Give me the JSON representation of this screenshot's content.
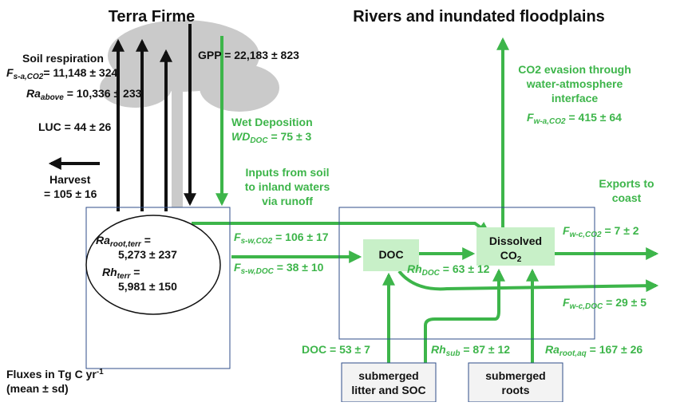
{
  "titles": {
    "terra_firme": "Terra Firme",
    "rivers": "Rivers and inundated floodplains"
  },
  "terra": {
    "soil_respiration": "Soil respiration",
    "f_sa": {
      "sym": "F",
      "sub": "s-a,CO2",
      "val": "= 11,148 ± 324"
    },
    "ra_above": {
      "sym": "Ra",
      "sub": "above",
      "val": " = 10,336 ± 233"
    },
    "luc": "LUC = 44 ± 26",
    "harvest": [
      "Harvest",
      "= 105 ± 16"
    ],
    "gpp": "GPP = 22,183 ± 823",
    "ra_root_terr": {
      "sym": "Ra",
      "sub": "root,terr",
      "val": " =",
      "val2": "5,273 ± 237"
    },
    "rh_terr": {
      "sym": "Rh",
      "sub": "terr",
      "val": " =",
      "val2": "5,981 ± 150"
    }
  },
  "transfer": {
    "wet_deposition": "Wet Deposition",
    "wd_doc": {
      "sym": "WD",
      "sub": "DOC",
      "val": " = 75 ± 3"
    },
    "inputs": [
      "Inputs from soil",
      "to inland waters",
      "via runoff"
    ],
    "f_sw_co2": {
      "sym": "F",
      "sub": "s-w,CO2",
      "val": " = 106 ± 17"
    },
    "f_sw_doc": {
      "sym": "F",
      "sub": "s-w,DOC",
      "val": " = 38 ± 10"
    }
  },
  "rivers": {
    "doc_box": "DOC",
    "dissolved_box": [
      "Dissolved",
      "CO",
      "2"
    ],
    "rh_doc": {
      "sym": "Rh",
      "sub": "DOC",
      "val": " = 63 ± 12"
    },
    "evasion": [
      "CO2 evasion through",
      "water-atmosphere",
      "interface"
    ],
    "f_wa": {
      "sym": "F",
      "sub": "w-a,CO2",
      "val": " = 415 ± 64"
    },
    "exports": [
      "Exports to",
      "coast"
    ],
    "f_wc_co2": {
      "sym": "F",
      "sub": "w-c,CO2",
      "val": " = 7 ± 2"
    },
    "f_wc_doc": {
      "sym": "F",
      "sub": "w-c,DOC",
      "val": " = 29 ± 5"
    },
    "doc_in": "DOC = 53 ± 7",
    "rh_sub": {
      "sym": "Rh",
      "sub": "sub",
      "val": " = 87 ± 12"
    },
    "ra_root_aq": {
      "sym": "Ra",
      "sub": "root,aq",
      "val": " = 167 ± 26"
    },
    "litter": [
      "submerged",
      "litter and SOC"
    ],
    "roots": [
      "submerged",
      "roots"
    ]
  },
  "legend": {
    "line1": "Fluxes in Tg C yr",
    "sup": "-1",
    "line2": "(mean ± sd)"
  }
}
